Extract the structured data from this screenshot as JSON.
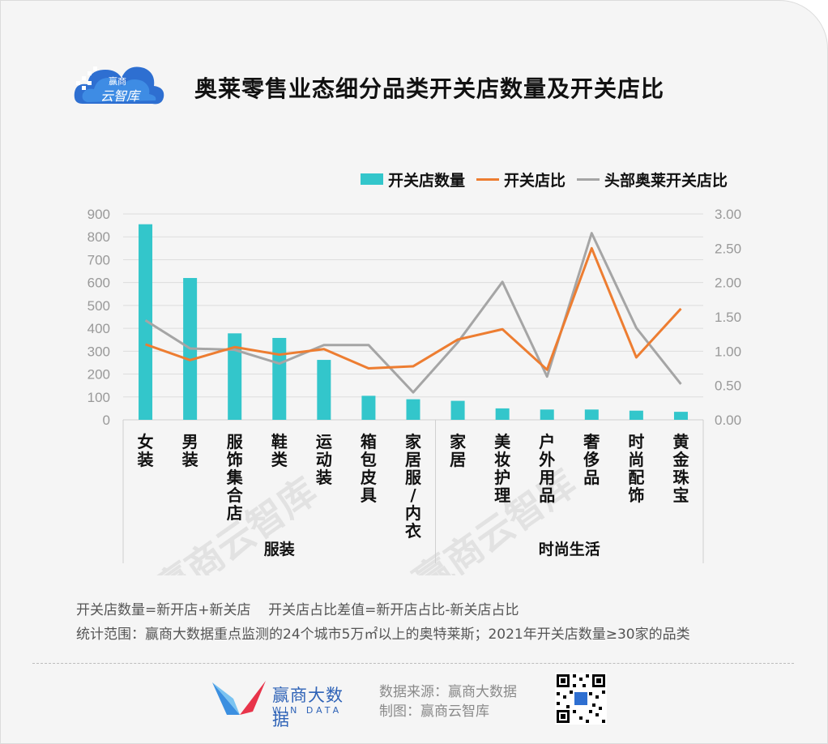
{
  "header": {
    "title": "奥莱零售业态细分品类开关店数量及开关店比",
    "logo_text": "赢商 云智库"
  },
  "legend": {
    "bar_label": "开关店数量",
    "line1_label": "开关店比",
    "line2_label": "头部奥莱开关店比"
  },
  "colors": {
    "bar": "#33c6cb",
    "line1": "#ed7d31",
    "line2": "#a5a5a5",
    "grid": "#dddddd",
    "axis_text": "#999999"
  },
  "chart_data": {
    "type": "bar",
    "categories": [
      "女装",
      "男装",
      "服饰集合店",
      "鞋类",
      "运动装",
      "箱包皮具",
      "家居服/内衣",
      "家居",
      "美妆护理",
      "户外用品",
      "奢侈品",
      "时尚配饰",
      "黄金珠宝"
    ],
    "groups": [
      {
        "name": "服装",
        "count": 7
      },
      {
        "name": "时尚生活",
        "count": 6
      }
    ],
    "series": [
      {
        "name": "开关店数量",
        "type": "bar",
        "axis": "left",
        "values": [
          855,
          620,
          378,
          358,
          262,
          105,
          90,
          83,
          50,
          45,
          45,
          40,
          35
        ]
      },
      {
        "name": "开关店比",
        "type": "line",
        "axis": "right",
        "values": [
          1.1,
          0.87,
          1.06,
          0.95,
          1.03,
          0.75,
          0.78,
          1.17,
          1.32,
          0.73,
          2.5,
          0.91,
          1.62
        ]
      },
      {
        "name": "头部奥莱开关店比",
        "type": "line",
        "axis": "right",
        "values": [
          1.45,
          1.04,
          1.02,
          0.82,
          1.09,
          1.09,
          0.4,
          1.13,
          2.01,
          0.63,
          2.72,
          1.34,
          0.52
        ]
      }
    ],
    "y_left": {
      "min": 0,
      "max": 900,
      "ticks": [
        "0",
        "100",
        "200",
        "300",
        "400",
        "500",
        "600",
        "700",
        "800",
        "900"
      ]
    },
    "y_right": {
      "min": 0,
      "max": 3,
      "ticks": [
        "0.00",
        "0.50",
        "1.00",
        "1.50",
        "2.00",
        "2.50",
        "3.00"
      ]
    },
    "grid": true,
    "legend_position": "top-right",
    "watermark": "赢商云智库"
  },
  "footer": {
    "note1": "开关店数量=新开店+新关店    开关店占比差值=新开店占比-新关店占比",
    "note2": "统计范围：赢商大数据重点监测的24个城市5万㎡以上的奥特莱斯；2021年开关店数量≥30家的品类",
    "brand_cn": "赢商大数据",
    "brand_en": "WIN DATA",
    "source": "数据来源：赢商大数据",
    "maker": "制图：赢商云智库"
  }
}
